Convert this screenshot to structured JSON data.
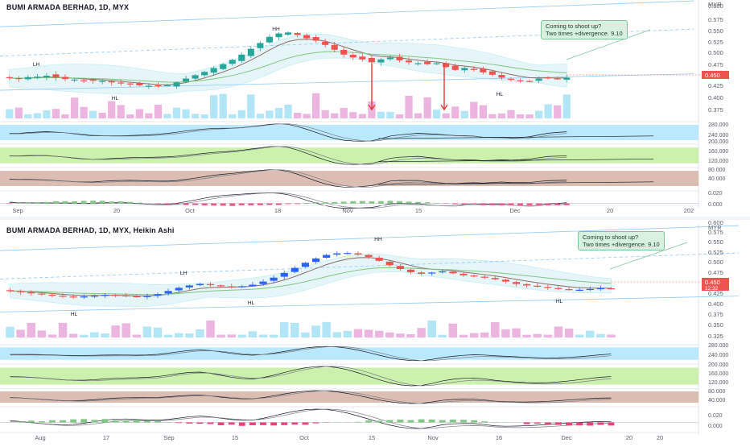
{
  "colors": {
    "up": "#26a69a",
    "down": "#ef5350",
    "ha_up": "#2962ff",
    "ha_down": "#ef5350",
    "ema_fast": "#8d6e63",
    "ema_slow": "#81c784",
    "band_fill": "#e3f4f8",
    "band_line": "#b2ebf2",
    "volume_up": "#b2e5f5",
    "volume_down": "#ecb5e0",
    "channel": "#90caf9",
    "rsi_band": "#b3e5fc",
    "stoch_band": "#c5f0a4",
    "cci_band": "#d7b6a8",
    "annotation_arrow": "#e53935",
    "price_label": "#ef5350",
    "grid": "#f0f3fa"
  },
  "chart_data": [
    {
      "type": "candlestick",
      "title": "BUMI ARMADA BERHAD, 1D, MYX",
      "currency_label": "MYR",
      "x_tick_labels": [
        "Sep",
        "20",
        "Oct",
        "18",
        "Nov",
        "15",
        "Dec",
        "20",
        "202"
      ],
      "price_axis_labels": [
        "0.600",
        "0.575",
        "0.550",
        "0.525",
        "0.500",
        "0.475",
        "0.450",
        "0.425",
        "0.400",
        "0.375"
      ],
      "price_tag": "0.450",
      "ylim": [
        0.36,
        0.605
      ],
      "callout_lines": [
        "Coming to shoot up?",
        "Two times +divergence. 9.10"
      ],
      "annotations": [
        "LH",
        "HL",
        "HH",
        "HL"
      ],
      "indicator_axis_labels": [
        "280.000",
        "240.000",
        "200.000",
        "160.000",
        "120.000",
        "80.000",
        "40.000",
        "0.020",
        "0.000"
      ],
      "closes": [
        0.449,
        0.447,
        0.451,
        0.452,
        0.454,
        0.45,
        0.447,
        0.446,
        0.444,
        0.444,
        0.443,
        0.44,
        0.438,
        0.436,
        0.434,
        0.433,
        0.432,
        0.434,
        0.44,
        0.448,
        0.455,
        0.462,
        0.47,
        0.478,
        0.487,
        0.498,
        0.51,
        0.522,
        0.535,
        0.542,
        0.544,
        0.539,
        0.532,
        0.527,
        0.518,
        0.508,
        0.498,
        0.492,
        0.488,
        0.482,
        0.488,
        0.492,
        0.486,
        0.482,
        0.48,
        0.478,
        0.48,
        0.472,
        0.466,
        0.47,
        0.466,
        0.461,
        0.456,
        0.45,
        0.446,
        0.444,
        0.442,
        0.448,
        0.45,
        0.448,
        0.45
      ]
    },
    {
      "type": "heikin-ashi",
      "title": "BUMI ARMADA BERHAD, 1D, MYX, Heikin Ashi",
      "currency_label": "MYR",
      "x_tick_labels": [
        "Aug",
        "17",
        "Sep",
        "15",
        "Oct",
        "15",
        "Nov",
        "16",
        "Dec",
        "20",
        "20"
      ],
      "price_axis_labels": [
        "0.600",
        "0.575",
        "0.550",
        "0.525",
        "0.500",
        "0.475",
        "0.450",
        "0.425",
        "0.400",
        "0.375",
        "0.350",
        "0.325"
      ],
      "price_tag": "0.450",
      "price_tag_sub": "12:32",
      "ylim": [
        0.315,
        0.605
      ],
      "callout_lines": [
        "Coming to shoot up?",
        "Two times +divergence. 9.10"
      ],
      "annotations": [
        "LH",
        "HL",
        "HL",
        "HH",
        "HL"
      ],
      "indicator_axis_labels": [
        "280.000",
        "240.000",
        "200.000",
        "160.000",
        "120.000",
        "80.000",
        "40.000",
        "0.020",
        "0.000"
      ],
      "closes": [
        0.444,
        0.441,
        0.438,
        0.435,
        0.432,
        0.43,
        0.429,
        0.43,
        0.432,
        0.434,
        0.433,
        0.431,
        0.429,
        0.431,
        0.436,
        0.444,
        0.452,
        0.458,
        0.462,
        0.459,
        0.456,
        0.455,
        0.456,
        0.46,
        0.468,
        0.478,
        0.49,
        0.503,
        0.516,
        0.527,
        0.536,
        0.54,
        0.541,
        0.537,
        0.531,
        0.521,
        0.51,
        0.5,
        0.492,
        0.488,
        0.491,
        0.494,
        0.489,
        0.484,
        0.481,
        0.478,
        0.474,
        0.468,
        0.462,
        0.458,
        0.455,
        0.452,
        0.449,
        0.447,
        0.447,
        0.449,
        0.451,
        0.45
      ]
    }
  ]
}
